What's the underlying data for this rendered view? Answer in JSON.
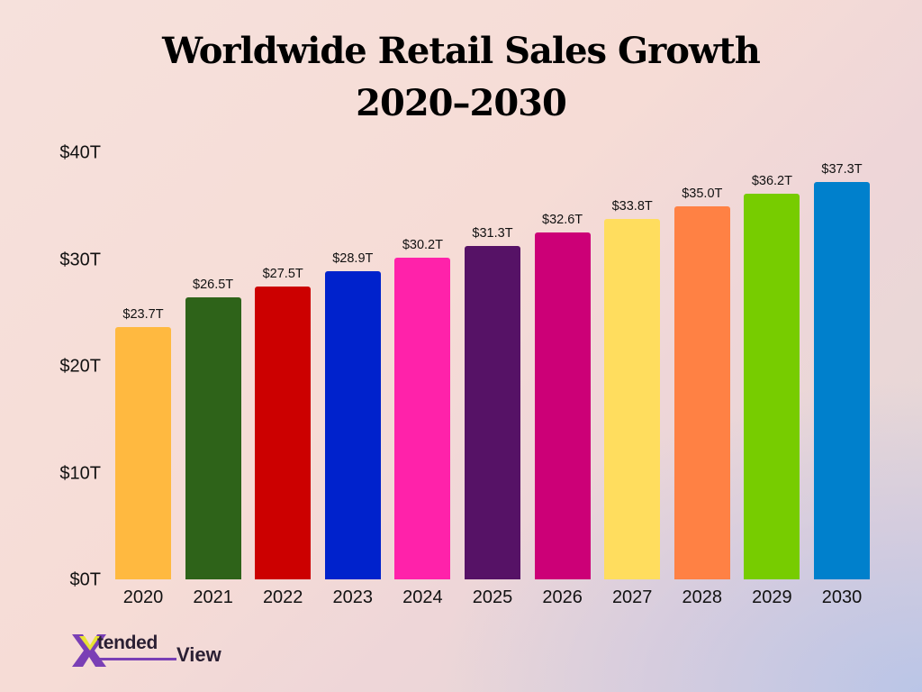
{
  "title": {
    "line1": "Worldwide Retail Sales Growth",
    "line2": "2020–2030"
  },
  "y_axis": {
    "ticks": [
      "$40T",
      "$30T",
      "$20T",
      "$10T",
      "$0T"
    ]
  },
  "bars": [
    {
      "year": "2020",
      "label": "$23.7T",
      "value": 23.7,
      "color": "#ffb940"
    },
    {
      "year": "2021",
      "label": "$26.5T",
      "value": 26.5,
      "color": "#2e6319"
    },
    {
      "year": "2022",
      "label": "$27.5T",
      "value": 27.5,
      "color": "#cc0000"
    },
    {
      "year": "2023",
      "label": "$28.9T",
      "value": 28.9,
      "color": "#0022cc"
    },
    {
      "year": "2024",
      "label": "$30.2T",
      "value": 30.2,
      "color": "#ff22aa"
    },
    {
      "year": "2025",
      "label": "$31.3T",
      "value": 31.3,
      "color": "#561266"
    },
    {
      "year": "2026",
      "label": "$32.6T",
      "value": 32.6,
      "color": "#cc0077"
    },
    {
      "year": "2027",
      "label": "$33.8T",
      "value": 33.8,
      "color": "#ffdd5e"
    },
    {
      "year": "2028",
      "label": "$35.0T",
      "value": 35.0,
      "color": "#ff8144"
    },
    {
      "year": "2029",
      "label": "$36.2T",
      "value": 36.2,
      "color": "#77cc00"
    },
    {
      "year": "2030",
      "label": "$37.3T",
      "value": 37.3,
      "color": "#0080cc"
    }
  ],
  "logo": {
    "mark": "X",
    "text": "tended",
    "text2": "View"
  },
  "chart_data": {
    "type": "bar",
    "title": "Worldwide Retail Sales Growth 2020–2030",
    "xlabel": "",
    "ylabel": "",
    "categories": [
      "2020",
      "2021",
      "2022",
      "2023",
      "2024",
      "2025",
      "2026",
      "2027",
      "2028",
      "2029",
      "2030"
    ],
    "values": [
      23.7,
      26.5,
      27.5,
      28.9,
      30.2,
      31.3,
      32.6,
      33.8,
      35.0,
      36.2,
      37.3
    ],
    "value_labels": [
      "$23.7T",
      "$26.5T",
      "$27.5T",
      "$28.9T",
      "$30.2T",
      "$31.3T",
      "$32.6T",
      "$33.8T",
      "$35.0T",
      "$36.2T",
      "$37.3T"
    ],
    "units": "Trillion USD",
    "y_tick_labels": [
      "$0T",
      "$10T",
      "$20T",
      "$30T",
      "$40T"
    ],
    "ylim": [
      0,
      40
    ],
    "grid": false,
    "legend": "none",
    "colors": [
      "#ffb940",
      "#2e6319",
      "#cc0000",
      "#0022cc",
      "#ff22aa",
      "#561266",
      "#cc0077",
      "#ffdd5e",
      "#ff8144",
      "#77cc00",
      "#0080cc"
    ]
  }
}
